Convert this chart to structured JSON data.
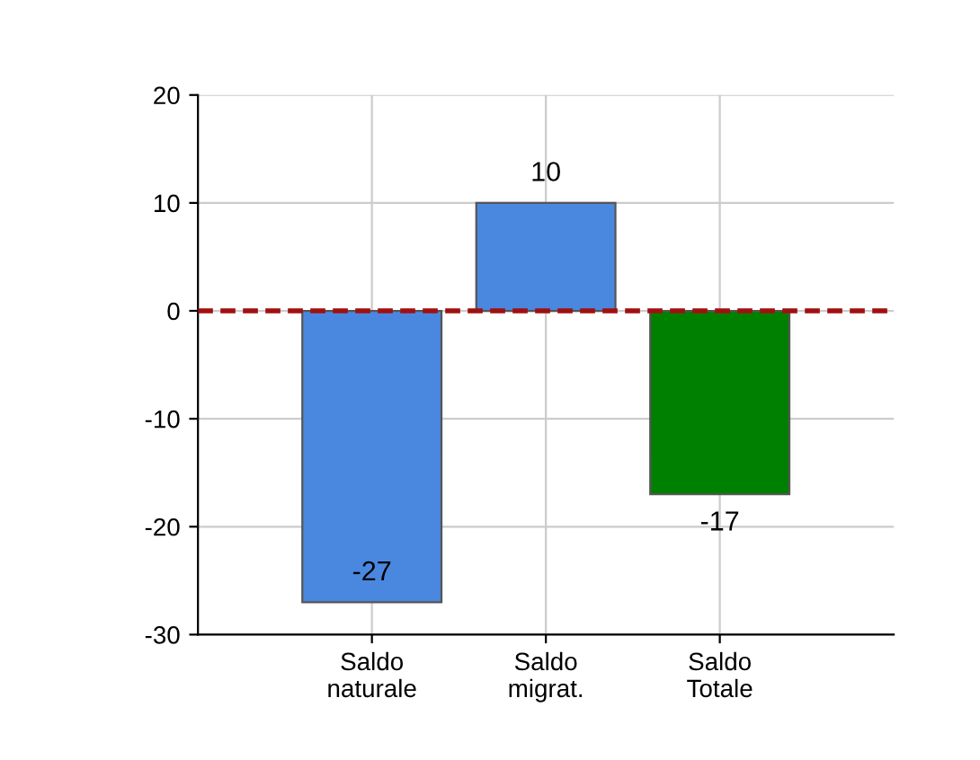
{
  "chart_data": {
    "type": "bar",
    "categories": [
      "Saldo\nnaturale",
      "Saldo\nmigrat.",
      "Saldo\nTotale"
    ],
    "values": [
      -27,
      10,
      -17
    ],
    "colors": [
      "#4a88e0",
      "#4a88e0",
      "#008000"
    ],
    "ylim": [
      -30,
      20
    ],
    "yticks": [
      -30,
      -20,
      -10,
      0,
      10,
      20
    ],
    "grid": true,
    "data_labels": true,
    "ref_lines": [
      {
        "axis": "y",
        "value": 0,
        "color": "#a01010",
        "line_style": "dashed"
      }
    ]
  }
}
